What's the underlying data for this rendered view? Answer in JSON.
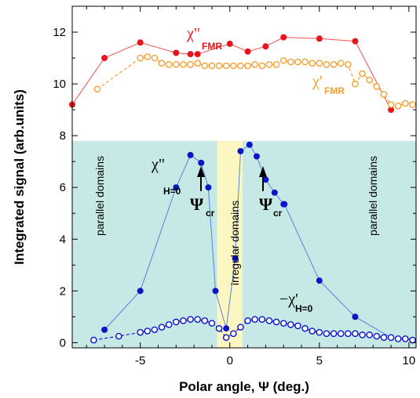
{
  "chart_data": {
    "type": "scatter",
    "xlabel": "Polar angle, Ψ (deg.)",
    "ylabel": "Integrated signal (arb.units)",
    "xlim": [
      -8.8,
      10.4
    ],
    "ylim": [
      -0.2,
      13
    ],
    "x_ticks": [
      -5,
      0,
      5,
      10
    ],
    "y_ticks": [
      0,
      2,
      4,
      6,
      8,
      10,
      12
    ],
    "grid": false,
    "colors": {
      "red": "#e8141c",
      "red_line": "#f05050",
      "orange": "#f7a030",
      "blue": "#0a14c8",
      "blue_line": "#5a7ee0",
      "cyan_region": "#c6e9e6",
      "yellow_region": "#fcf6c0"
    },
    "regions": [
      {
        "label": "parallel domains",
        "x_range": [
          -8.8,
          -0.7
        ],
        "y_range": [
          -0.2,
          7.8
        ],
        "color": "cyan_region"
      },
      {
        "label": "irregular domains",
        "x_range": [
          -0.7,
          0.7
        ],
        "y_range": [
          -0.2,
          7.8
        ],
        "color": "yellow_region"
      },
      {
        "label": "parallel domains",
        "x_range": [
          0.7,
          10.4
        ],
        "y_range": [
          -0.2,
          7.8
        ],
        "color": "cyan_region"
      }
    ],
    "series": [
      {
        "label_main": "χ\"",
        "label_sub": "FMR",
        "marker": "filled",
        "color": "red",
        "line_color": "red_line",
        "line": "solid",
        "x": [
          -8.8,
          -7,
          -5,
          -3,
          -2.2,
          -1.8,
          0,
          1,
          2,
          3,
          5,
          7,
          9
        ],
        "y": [
          9.2,
          11.0,
          11.6,
          11.2,
          11.15,
          11.15,
          11.55,
          11.25,
          11.45,
          11.8,
          11.75,
          11.65,
          9.0
        ]
      },
      {
        "label_main": "χ'",
        "label_sub": "FMR",
        "marker": "open",
        "color": "orange",
        "line_color": "orange",
        "line": "dashed",
        "x": [
          -7.4,
          -5,
          -4.6,
          -4.2,
          -3.8,
          -3.4,
          -3,
          -2.6,
          -2.2,
          -1.8,
          -1.4,
          -1,
          -0.6,
          -0.2,
          0.2,
          0.6,
          1,
          1.4,
          1.8,
          2.2,
          2.6,
          3,
          3.4,
          3.8,
          4.2,
          4.6,
          5,
          5.4,
          5.8,
          6.2,
          6.6,
          7,
          7.4,
          7.8,
          8.2,
          8.6,
          9,
          9.4,
          9.8,
          10.2
        ],
        "y": [
          9.8,
          11.0,
          11.05,
          11.0,
          10.8,
          10.75,
          10.75,
          10.75,
          10.75,
          10.8,
          10.7,
          10.7,
          10.7,
          10.7,
          10.7,
          10.7,
          10.7,
          10.75,
          10.7,
          10.75,
          10.75,
          10.9,
          10.85,
          10.85,
          10.85,
          10.8,
          10.8,
          10.75,
          10.75,
          10.8,
          10.75,
          10.0,
          10.4,
          10.15,
          9.9,
          9.6,
          9.2,
          9.15,
          9.25,
          9.2
        ]
      },
      {
        "label_main": "χ\"",
        "label_sub": "H=0",
        "marker": "filled",
        "color": "blue",
        "line_color": "blue_line",
        "line": "solid",
        "x": [
          -7,
          -5,
          -3,
          -2.2,
          -1.6,
          -1.2,
          -0.8,
          -0.2,
          0.3,
          0.6,
          1.1,
          1.5,
          2,
          2.5,
          3,
          3.05,
          5,
          7,
          9
        ],
        "y": [
          0.5,
          2.0,
          6.0,
          7.25,
          6.95,
          6.0,
          2.0,
          0.55,
          3.25,
          7.4,
          7.65,
          7.2,
          6.3,
          5.8,
          5.35,
          5.35,
          2.4,
          1.0,
          0.2
        ]
      },
      {
        "label_main": "−χ'",
        "label_sub": "H=0",
        "marker": "open",
        "color": "blue",
        "line_color": "blue",
        "line": "dashed",
        "x": [
          -7.6,
          -6.2,
          -5,
          -4.6,
          -4.2,
          -3.8,
          -3.4,
          -3,
          -2.6,
          -2.2,
          -1.8,
          -1.4,
          -1,
          -0.6,
          -0.2,
          0.2,
          0.6,
          1,
          1.4,
          1.8,
          2.2,
          2.6,
          3,
          3.4,
          3.8,
          4.2,
          4.6,
          5,
          5.4,
          5.8,
          6.2,
          6.6,
          7,
          7.4,
          7.8,
          8.2,
          8.6,
          9,
          9.4,
          9.8,
          10.2
        ],
        "y": [
          0.1,
          0.25,
          0.4,
          0.45,
          0.5,
          0.6,
          0.7,
          0.8,
          0.85,
          0.9,
          0.9,
          0.85,
          0.75,
          0.55,
          0.2,
          0.35,
          0.6,
          0.85,
          0.9,
          0.9,
          0.85,
          0.8,
          0.75,
          0.7,
          0.65,
          0.55,
          0.45,
          0.4,
          0.35,
          0.35,
          0.35,
          0.35,
          0.35,
          0.3,
          0.3,
          0.25,
          0.2,
          0.2,
          0.15,
          0.15,
          0.1
        ]
      }
    ],
    "annotations": [
      {
        "symbol": "Ψ",
        "sub": "cr",
        "arrow_x": -2.2
      },
      {
        "symbol": "Ψ",
        "sub": "cr",
        "arrow_x": 1.5
      }
    ]
  }
}
